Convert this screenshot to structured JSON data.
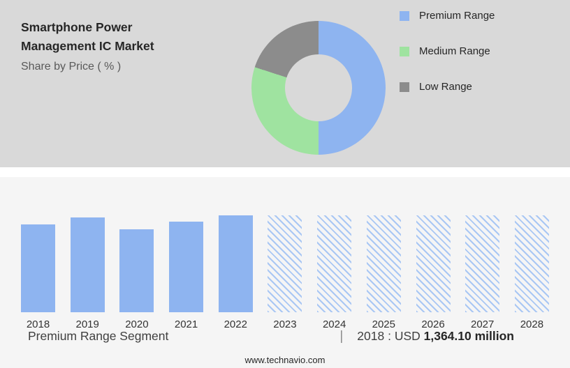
{
  "header": {
    "title": "Smartphone Power Management IC Market",
    "subtitle": "Share by Price ( % )"
  },
  "colors": {
    "top_background": "#d9d9d9",
    "bottom_background": "#f5f5f5",
    "premium_blue": "#8eb4f0",
    "medium_green": "#9fe3a0",
    "low_gray": "#8c8c8c",
    "hatch_blue": "#a9c7f4"
  },
  "chart_data": [
    {
      "type": "pie",
      "donut": true,
      "title": "Share by Price ( % )",
      "legend_position": "right",
      "slices": [
        {
          "label": "Premium Range",
          "value": 50,
          "color": "#8eb4f0"
        },
        {
          "label": "Medium Range",
          "value": 30,
          "color": "#9fe3a0"
        },
        {
          "label": "Low Range",
          "value": 20,
          "color": "#8c8c8c"
        }
      ],
      "note": "slice values estimated from arc angles; no numeric labels shown"
    },
    {
      "type": "bar",
      "categories": [
        "2018",
        "2019",
        "2020",
        "2021",
        "2022",
        "2023",
        "2024",
        "2025",
        "2026",
        "2027",
        "2028"
      ],
      "values": [
        1364.1,
        1470,
        1290,
        1400,
        1500,
        null,
        null,
        null,
        null,
        null,
        null
      ],
      "unit": "USD million",
      "known_value_label": "2018 : USD 1,364.10 million",
      "ylim": [
        0,
        1600
      ],
      "grid": false,
      "bar_color": "#8eb4f0",
      "hatch_color": "#a9c7f4",
      "forecast_display_value": 1500,
      "note": "2019-2022 estimated from bar heights; 2023-2028 are forecast bars drawn hatched with no values shown"
    }
  ],
  "footer": {
    "segment_label": "Premium Range Segment",
    "separator": "|",
    "value_prefix": "2018 : USD ",
    "value_bold": "1,364.10 million",
    "website": "www.technavio.com"
  }
}
